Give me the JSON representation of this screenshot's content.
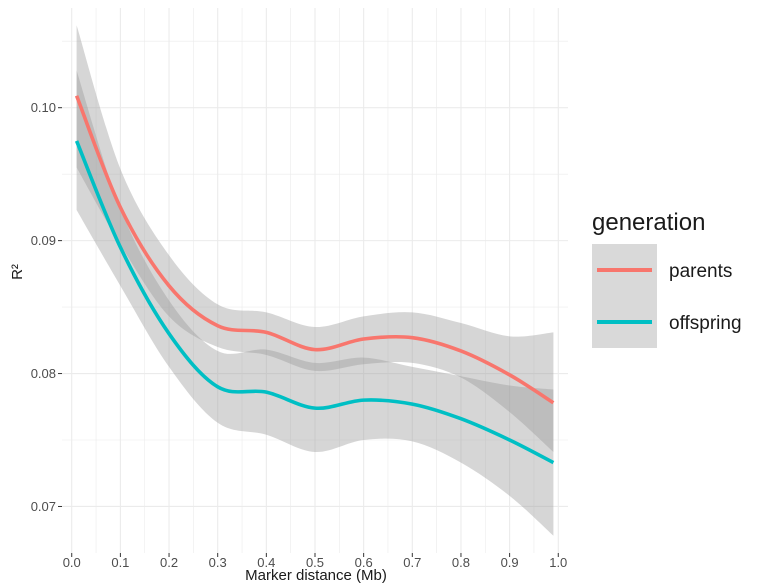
{
  "chart_data": {
    "type": "line",
    "xlabel": "Marker distance (Mb)",
    "ylabel": "R²",
    "xlim": [
      -0.02,
      1.02
    ],
    "ylim": [
      0.0665,
      0.1075
    ],
    "x_ticks": [
      0.0,
      0.1,
      0.2,
      0.3,
      0.4,
      0.5,
      0.6,
      0.7,
      0.8,
      0.9,
      1.0
    ],
    "x_tick_labels": [
      "0.0",
      "0.1",
      "0.2",
      "0.3",
      "0.4",
      "0.5",
      "0.6",
      "0.7",
      "0.8",
      "0.9",
      "1.0"
    ],
    "y_ticks": [
      0.07,
      0.08,
      0.09,
      0.1
    ],
    "y_tick_labels": [
      "0.07",
      "0.08",
      "0.09",
      "0.10"
    ],
    "grid": true,
    "legend": {
      "title": "generation",
      "position": "right"
    },
    "x": [
      0.01,
      0.1,
      0.2,
      0.3,
      0.4,
      0.5,
      0.6,
      0.7,
      0.8,
      0.9,
      0.99
    ],
    "series": [
      {
        "name": "parents",
        "color": "#F8766D",
        "values": [
          0.1009,
          0.0925,
          0.0866,
          0.0836,
          0.0831,
          0.0818,
          0.0826,
          0.0827,
          0.0817,
          0.0799,
          0.0778
        ],
        "ci_lower": [
          0.0955,
          0.0897,
          0.0843,
          0.082,
          0.0814,
          0.0802,
          0.0807,
          0.0808,
          0.0797,
          0.0771,
          0.0741
        ],
        "ci_upper": [
          0.1062,
          0.0954,
          0.0889,
          0.0852,
          0.0846,
          0.0835,
          0.0843,
          0.0846,
          0.0838,
          0.0828,
          0.0831
        ]
      },
      {
        "name": "offspring",
        "color": "#00BFC4",
        "values": [
          0.0975,
          0.0895,
          0.083,
          0.079,
          0.0786,
          0.0774,
          0.078,
          0.0777,
          0.0766,
          0.075,
          0.0733
        ],
        "ci_lower": [
          0.0923,
          0.0866,
          0.0805,
          0.0763,
          0.0754,
          0.0741,
          0.075,
          0.0749,
          0.0733,
          0.0708,
          0.0678
        ],
        "ci_upper": [
          0.1028,
          0.0924,
          0.0855,
          0.0817,
          0.0818,
          0.0808,
          0.0812,
          0.0805,
          0.0798,
          0.0791,
          0.0788
        ]
      }
    ]
  },
  "colors": {
    "panel_background": "#ffffff",
    "grid_line": "#ebebeb",
    "ribbon": "#999999",
    "legend_key_background": "#d9d9d9"
  }
}
